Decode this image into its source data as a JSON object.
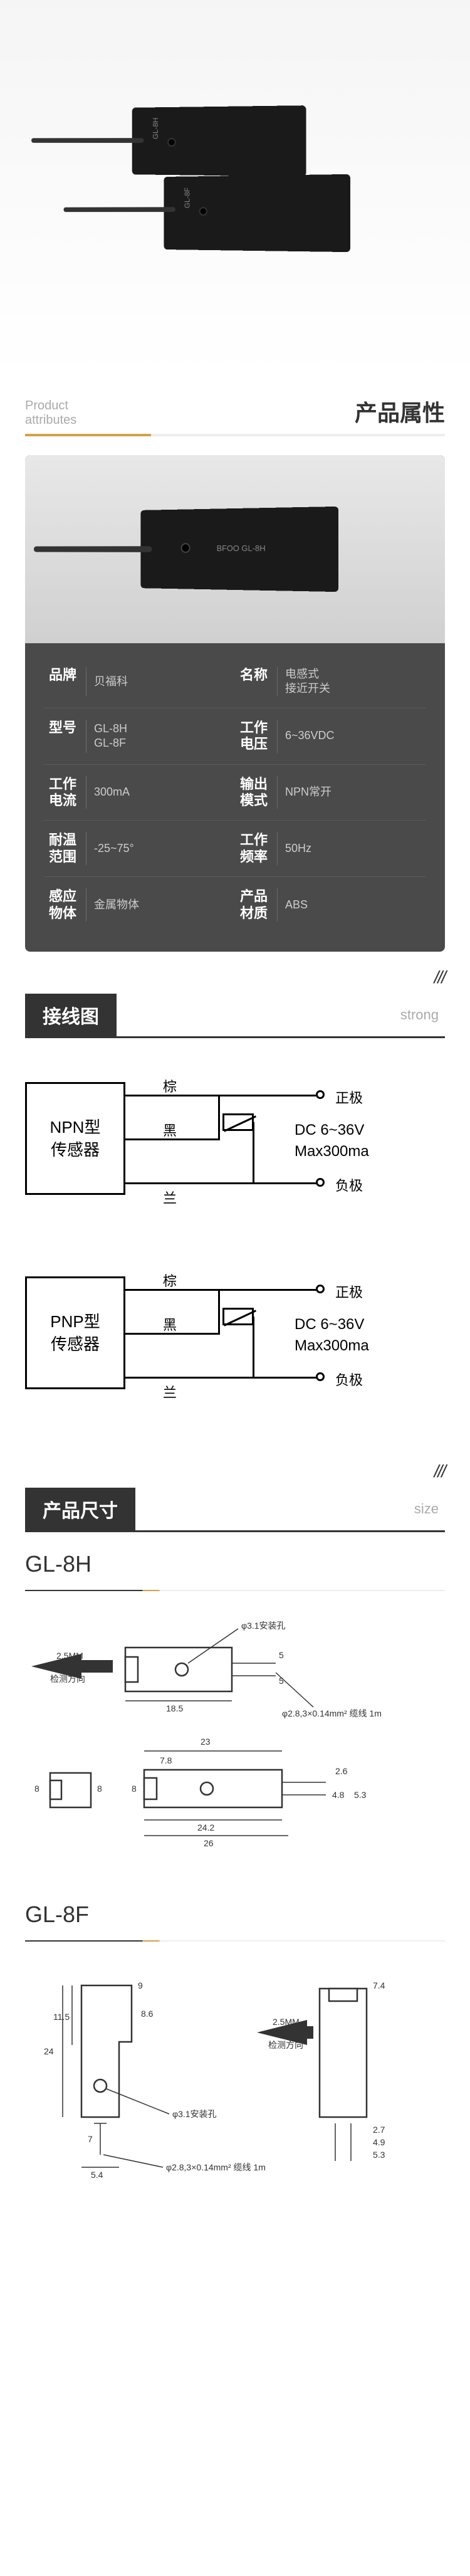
{
  "hero": {
    "sensor_back_label": "GL-8H",
    "sensor_front_label": "GL-8F",
    "brand_mark": "BFOO"
  },
  "attributes_header": {
    "en": "Product\nattributes",
    "cn": "产品属性"
  },
  "spec_image": {
    "label": "GL-8H",
    "brand": "BFOO"
  },
  "specs": [
    [
      {
        "k": "品牌",
        "v": "贝福科"
      },
      {
        "k": "名称",
        "v": "电感式\n接近开关"
      }
    ],
    [
      {
        "k": "型号",
        "v": "GL-8H\nGL-8F"
      },
      {
        "k": "工作\n电压",
        "v": "6~36VDC"
      }
    ],
    [
      {
        "k": "工作\n电流",
        "v": "300mA"
      },
      {
        "k": "输出\n模式",
        "v": "NPN常开"
      }
    ],
    [
      {
        "k": "耐温\n范围",
        "v": "-25~75°"
      },
      {
        "k": "工作\n频率",
        "v": "50Hz"
      }
    ],
    [
      {
        "k": "感应\n物体",
        "v": "金属物体"
      },
      {
        "k": "产品\n材质",
        "v": "ABS"
      }
    ]
  ],
  "wiring_header": {
    "title": "接线图",
    "sub": "strong"
  },
  "wiring_common": {
    "wire_brown": "棕",
    "wire_black": "黑",
    "wire_blue": "兰",
    "positive": "正极",
    "negative": "负极",
    "power_line1": "DC  6~36V",
    "power_line2": "Max300ma",
    "slashes": "///"
  },
  "wiring": [
    {
      "type_line1": "NPN型",
      "type_line2": "传感器"
    },
    {
      "type_line1": "PNP型",
      "type_line2": "传感器"
    }
  ],
  "dims_header": {
    "title": "产品尺寸",
    "sub": "size"
  },
  "dims": [
    {
      "model": "GL-8H",
      "labels": {
        "sense": "2.5MM",
        "sense_dir": "检测方向",
        "hole": "φ3.1安装孔",
        "cable": "φ2.8,3×0.14mm² 缆线 1m",
        "d_18_5": "18.5",
        "d_23": "23",
        "d_7_8": "7.8",
        "d_8a": "8",
        "d_8b": "8",
        "d_8c": "8",
        "d_24_2": "24.2",
        "d_26": "26",
        "d_5": "5",
        "d_5a": "5",
        "d_2_6": "2.6",
        "d_4_8": "4.8",
        "d_5_3": "5.3"
      }
    },
    {
      "model": "GL-8F",
      "labels": {
        "sense": "2.5MM",
        "sense_dir": "检测方向",
        "hole": "φ3.1安装孔",
        "cable": "φ2.8,3×0.14mm² 缆线 1m",
        "d_24": "24",
        "d_11_5": "11.5",
        "d_9": "9",
        "d_8_6": "8.6",
        "d_7": "7",
        "d_5_4": "5.4",
        "d_7_4": "7.4",
        "d_2_7": "2.7",
        "d_4_9": "4.9",
        "d_5_3": "5.3"
      }
    }
  ],
  "colors": {
    "accent": "#d4a04a",
    "dark_bg": "#4a4a4a",
    "sensor_body": "#1a1a1a",
    "text_main": "#333333",
    "text_muted": "#aaaaaa"
  }
}
